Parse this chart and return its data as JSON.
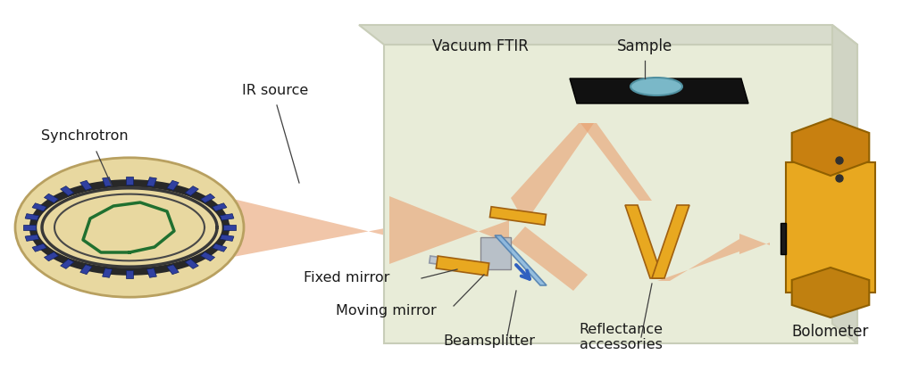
{
  "title": "",
  "background_color": "#ffffff",
  "labels": {
    "synchrotron": "Synchrotron",
    "ir_source": "IR source",
    "vacuum_ftir": "Vacuum FTIR",
    "sample": "Sample",
    "fixed_mirror": "Fixed mirror",
    "moving_mirror": "Moving mirror",
    "beamsplitter": "Beamsplitter",
    "reflectance": "Reflectance\naccessories",
    "bolometer": "Bolometer"
  },
  "colors": {
    "vacuum_box": "#e8ecd8",
    "vacuum_box_edge": "#c8cdb8",
    "beam": "#e8a070",
    "beam_alpha": 0.6,
    "sample_plate": "#1a1a1a",
    "sample_disk": "#7ab8c8",
    "bolometer_body": "#e8a820",
    "bolometer_top": "#c88010",
    "mirror_orange": "#e8a820",
    "mirror_gray": "#c0c8d0",
    "beamsplitter_blue": "#8ab8e0",
    "arrow_blue": "#3060c0",
    "synchrotron_bg": "#e8d8a0",
    "synchrotron_ring": "#404040",
    "text_color": "#1a1a1a",
    "label_line": "#404040",
    "magnet_color": "#3040a0",
    "magnet_edge": "#102060"
  },
  "figsize": [
    10.2,
    4.16
  ],
  "dpi": 100
}
